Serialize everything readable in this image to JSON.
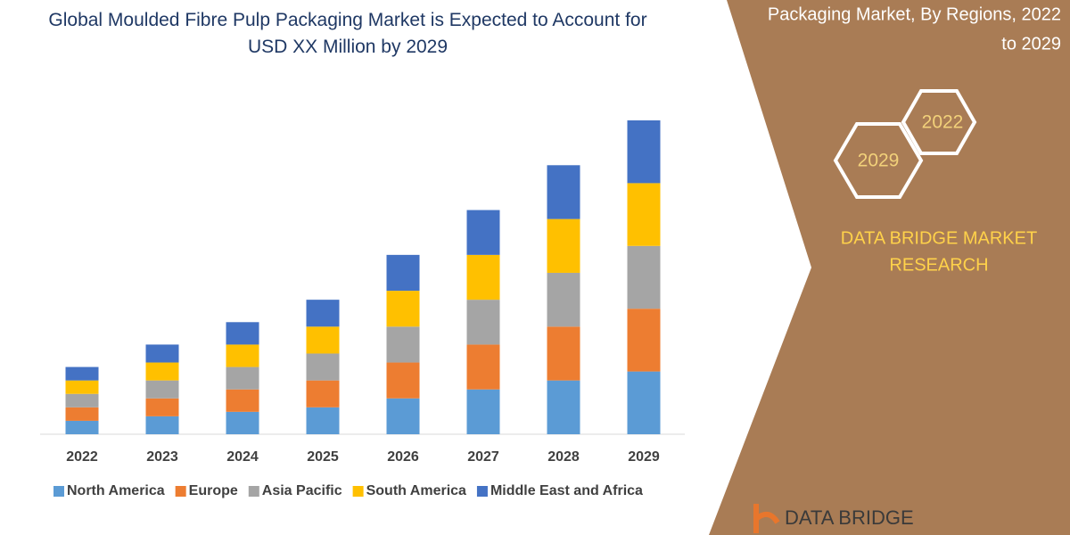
{
  "chart_data": {
    "type": "stacked-bar",
    "title": "Global Moulded Fibre Pulp Packaging Market is Expected to Account for USD XX Million by 2029",
    "categories": [
      "2022",
      "2023",
      "2024",
      "2025",
      "2026",
      "2027",
      "2028",
      "2029"
    ],
    "series": [
      {
        "name": "North America",
        "color": "#5b9bd5",
        "values": [
          15,
          20,
          25,
          30,
          40,
          50,
          60,
          70
        ]
      },
      {
        "name": "Europe",
        "color": "#ed7d31",
        "values": [
          15,
          20,
          25,
          30,
          40,
          50,
          60,
          70
        ]
      },
      {
        "name": "Asia Pacific",
        "color": "#a5a5a5",
        "values": [
          15,
          20,
          25,
          30,
          40,
          50,
          60,
          70
        ]
      },
      {
        "name": "South America",
        "color": "#ffc000",
        "values": [
          15,
          20,
          25,
          30,
          40,
          50,
          60,
          70
        ]
      },
      {
        "name": "Middle East and Africa",
        "color": "#4472c4",
        "values": [
          15,
          20,
          25,
          30,
          40,
          50,
          60,
          70
        ]
      }
    ]
  },
  "side_panel": {
    "title_lines": [
      "Packaging Market, By Regions, 2022",
      "to 2029"
    ],
    "hexagons": [
      "2022",
      "2029"
    ],
    "brand_lines": [
      "DATA BRIDGE MARKET",
      "RESEARCH"
    ],
    "logo": "DATA BRIDGE"
  }
}
